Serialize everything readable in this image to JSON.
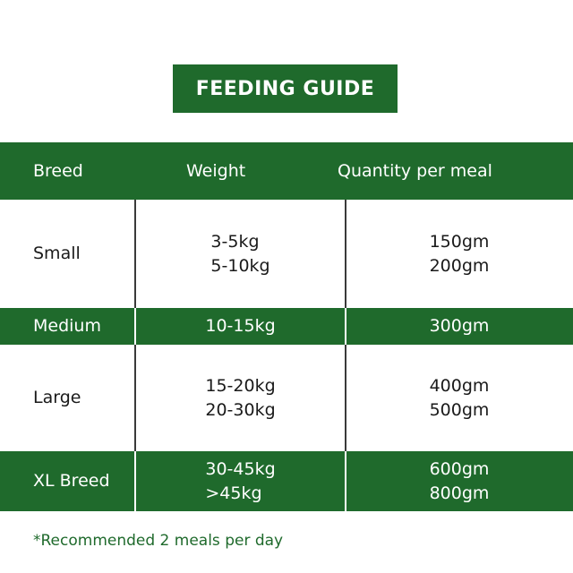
{
  "title": "FEEDING GUIDE",
  "colors": {
    "brand_green": "#1f6a2c",
    "text_dark": "#1a1a1a",
    "white": "#ffffff"
  },
  "table": {
    "headers": {
      "breed": "Breed",
      "weight": "Weight",
      "quantity": "Quantity per meal"
    },
    "rows": [
      {
        "breed": "Small",
        "weights": [
          "3-5kg",
          "5-10kg"
        ],
        "quantities": [
          "150gm",
          "200gm"
        ]
      },
      {
        "breed": "Medium",
        "weights": [
          "10-15kg"
        ],
        "quantities": [
          "300gm"
        ]
      },
      {
        "breed": "Large",
        "weights": [
          "15-20kg",
          "20-30kg"
        ],
        "quantities": [
          "400gm",
          "500gm"
        ]
      },
      {
        "breed": "XL Breed",
        "weights": [
          "30-45kg",
          ">45kg"
        ],
        "quantities": [
          "600gm",
          "800gm"
        ]
      }
    ]
  },
  "footnote": "*Recommended 2 meals per day"
}
